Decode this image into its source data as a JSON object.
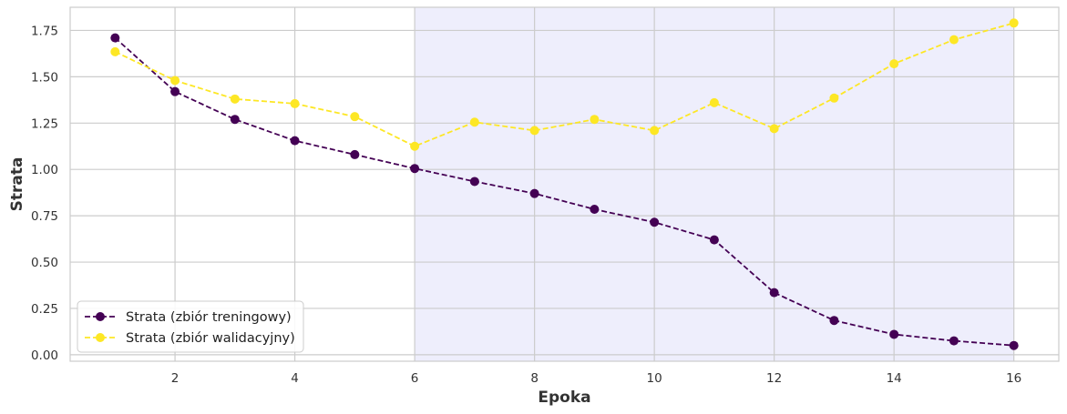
{
  "chart_data": {
    "type": "line",
    "xlabel": "Epoka",
    "ylabel": "Strata",
    "xlim": [
      0.25,
      16.75
    ],
    "ylim": [
      -0.035,
      1.875
    ],
    "xticks": [
      2,
      4,
      6,
      8,
      10,
      12,
      14,
      16
    ],
    "xtick_labels": [
      "2",
      "4",
      "6",
      "8",
      "10",
      "12",
      "14",
      "16"
    ],
    "yticks": [
      0.0,
      0.25,
      0.5,
      0.75,
      1.0,
      1.25,
      1.5,
      1.75
    ],
    "ytick_labels": [
      "0.00",
      "0.25",
      "0.50",
      "0.75",
      "1.00",
      "1.25",
      "1.50",
      "1.75"
    ],
    "grid": true,
    "legend_position": "lower-left",
    "shaded_region": {
      "x_start": 6,
      "x_end": 16,
      "color": "#eeeefc"
    },
    "x": [
      1,
      2,
      3,
      4,
      5,
      6,
      7,
      8,
      9,
      10,
      11,
      12,
      13,
      14,
      15,
      16
    ],
    "series": [
      {
        "name": "Strata (zbiór treningowy)",
        "color": "#440154",
        "values": [
          1.71,
          1.42,
          1.27,
          1.155,
          1.08,
          1.005,
          0.935,
          0.87,
          0.785,
          0.715,
          0.62,
          0.335,
          0.185,
          0.11,
          0.075,
          0.05
        ]
      },
      {
        "name": "Strata (zbiór walidacyjny)",
        "color": "#fde725",
        "values": [
          1.635,
          1.48,
          1.38,
          1.355,
          1.285,
          1.125,
          1.255,
          1.21,
          1.27,
          1.21,
          1.36,
          1.22,
          1.385,
          1.57,
          1.7,
          1.79
        ]
      }
    ]
  }
}
